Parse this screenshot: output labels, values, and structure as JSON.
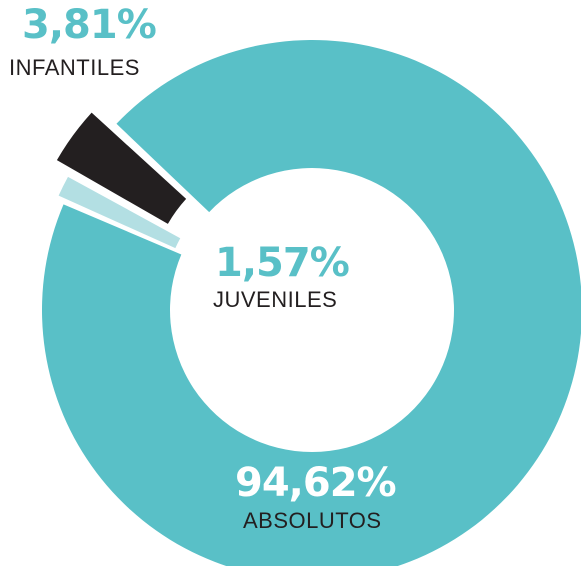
{
  "chart_data": {
    "type": "pie",
    "title": "",
    "slices": [
      {
        "label": "ABSOLUTOS",
        "value": 94.62,
        "display": "94,62%",
        "color": "#59c0c7"
      },
      {
        "label": "INFANTILES",
        "value": 3.81,
        "display": "3,81%",
        "color": "#231f20"
      },
      {
        "label": "JUVENILES",
        "value": 1.57,
        "display": "1,57%",
        "color": "#b3dfe3"
      }
    ],
    "donut": true
  }
}
